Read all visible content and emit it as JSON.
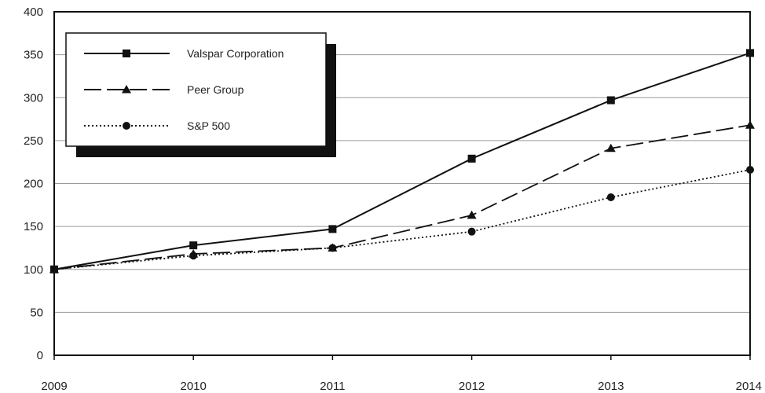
{
  "chart_data": {
    "type": "line",
    "x": [
      "2009",
      "2010",
      "2011",
      "2012",
      "2013",
      "2014"
    ],
    "ylim": [
      0,
      400
    ],
    "yticks": [
      0,
      50,
      100,
      150,
      200,
      250,
      300,
      350,
      400
    ],
    "grid": true,
    "legend_position": "top-left",
    "series": [
      {
        "name": "Valspar Corporation",
        "marker": "square",
        "dash": "solid",
        "values": [
          100,
          128,
          147,
          229,
          297,
          352
        ]
      },
      {
        "name": "Peer Group",
        "marker": "triangle",
        "dash": "dashed",
        "values": [
          100,
          118,
          125,
          163,
          241,
          268
        ]
      },
      {
        "name": "S&P 500",
        "marker": "circle",
        "dash": "dotted",
        "values": [
          100,
          116,
          125,
          144,
          184,
          216
        ]
      }
    ]
  }
}
